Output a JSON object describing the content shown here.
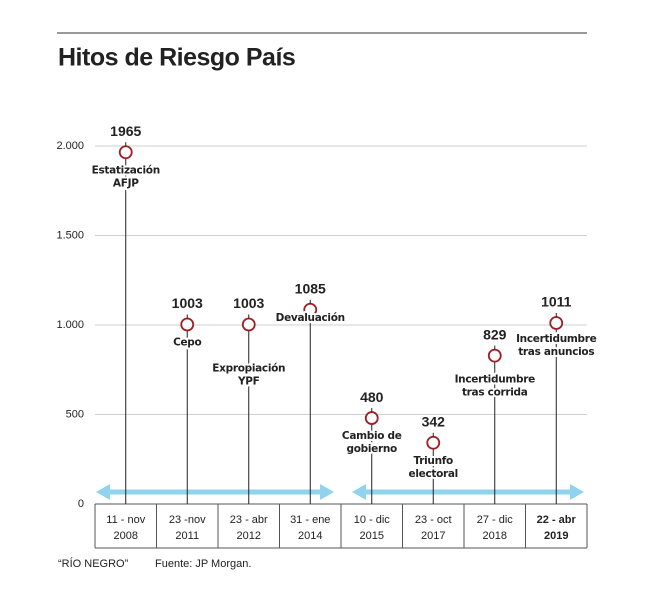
{
  "chart_data": {
    "type": "lollipop",
    "title": "Hitos de Riesgo País",
    "categories": [
      [
        "11 - nov",
        "2008"
      ],
      [
        "23 -nov",
        "2011"
      ],
      [
        "23 - abr",
        "2012"
      ],
      [
        "31 - ene",
        "2014"
      ],
      [
        "10 - dic",
        "2015"
      ],
      [
        "23 - oct",
        "2017"
      ],
      [
        "27 - dic",
        "2018"
      ],
      [
        "22 - abr",
        "2019"
      ]
    ],
    "values": [
      1965,
      1003,
      1003,
      1085,
      480,
      342,
      829,
      1011
    ],
    "events": [
      [
        "Estatización",
        "AFJP"
      ],
      [
        "Cepo"
      ],
      [
        "Expropiación",
        "YPF"
      ],
      [
        "Devaluación"
      ],
      [
        "Cambio de",
        "gobierno"
      ],
      [
        "Triunfo",
        "electoral"
      ],
      [
        "Incertidumbre",
        "tras corrida"
      ],
      [
        "Incertidumbre",
        "tras anuncios"
      ]
    ],
    "color": "#a01e23",
    "ylim": [
      0,
      2000
    ],
    "yticks": [
      {
        "value": 0,
        "label": "0"
      },
      {
        "value": 500,
        "label": "500"
      },
      {
        "value": 1000,
        "label": "1.000"
      },
      {
        "value": 1500,
        "label": "1.500"
      },
      {
        "value": 2000,
        "label": "2.000"
      }
    ],
    "grid": true,
    "source": "Fuente: JP Morgan.",
    "credit": "“RÍO NEGRO”"
  }
}
